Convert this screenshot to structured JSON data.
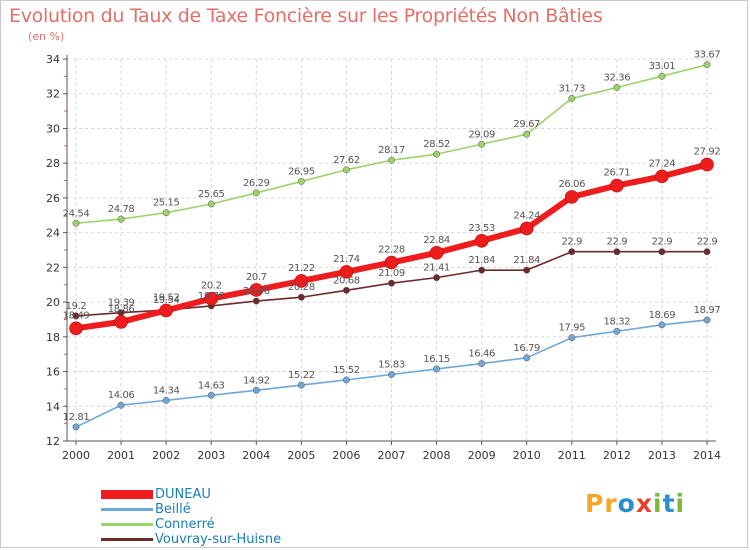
{
  "title": "Evolution du Taux de Taxe Foncière sur les Propriétés Non Bâties",
  "subtitle": "(en %)",
  "logo": {
    "letters": [
      "P",
      "r",
      "o",
      "x",
      "i",
      "t",
      "i"
    ],
    "colors": [
      "#f4a62a",
      "#f4a62a",
      "#2a8fd1",
      "#e8402c",
      "#7cb93a",
      "#2a8fd1",
      "#7cb93a"
    ]
  },
  "chart_data": {
    "type": "line",
    "title": "Evolution du Taux de Taxe Foncière sur les Propriétés Non Bâties",
    "ylabel": "(en %)",
    "x": [
      "2000",
      "2001",
      "2002",
      "2003",
      "2004",
      "2005",
      "2006",
      "2007",
      "2008",
      "2009",
      "2010",
      "2011",
      "2012",
      "2013",
      "2014"
    ],
    "ylim": [
      12,
      34
    ],
    "yticks": [
      "12",
      "14",
      "16",
      "18",
      "20",
      "22",
      "24",
      "26",
      "28",
      "30",
      "32",
      "34"
    ],
    "grid": true,
    "legend_position": "bottom-left",
    "series": [
      {
        "name": "Vouvray-sur-Huisne",
        "color": "#6e2a2a",
        "style": "thin",
        "values": [
          19.2,
          19.39,
          19.54,
          19.78,
          20.06,
          20.28,
          20.68,
          21.09,
          21.41,
          21.84,
          21.84,
          22.9,
          22.9,
          22.9,
          22.9
        ],
        "labels": [
          "19.2",
          "19.39",
          "19.54",
          "19.78",
          "20.06",
          "20.28",
          "20.68",
          "21.09",
          "21.41",
          "21.84",
          "21.84",
          "22.9",
          "22.9",
          "22.9",
          "22.9"
        ]
      },
      {
        "name": "Beillé",
        "color": "#6fa8d6",
        "style": "thin",
        "values": [
          12.81,
          14.06,
          14.34,
          14.63,
          14.92,
          15.22,
          15.52,
          15.83,
          16.15,
          16.46,
          16.79,
          17.95,
          18.32,
          18.69,
          18.97
        ],
        "labels": [
          "12.81",
          "14.06",
          "14.34",
          "14.63",
          "14.92",
          "15.22",
          "15.52",
          "15.83",
          "16.15",
          "16.46",
          "16.79",
          "17.95",
          "18.32",
          "18.69",
          "18.97"
        ]
      },
      {
        "name": "Connerré",
        "color": "#9ad36a",
        "style": "thin",
        "values": [
          24.54,
          24.78,
          25.15,
          25.65,
          26.29,
          26.95,
          27.62,
          28.17,
          28.52,
          29.09,
          29.67,
          31.73,
          32.36,
          33.01,
          33.67
        ],
        "labels": [
          "24.54",
          "24.78",
          "25.15",
          "25.65",
          "26.29",
          "26.95",
          "27.62",
          "28.17",
          "28.52",
          "29.09",
          "29.67",
          "31.73",
          "32.36",
          "33.01",
          "33.67"
        ]
      },
      {
        "name": "DUNEAU",
        "color": "#ee1c1c",
        "style": "thick",
        "values": [
          18.49,
          18.86,
          19.52,
          20.2,
          20.7,
          21.22,
          21.74,
          22.28,
          22.84,
          23.53,
          24.24,
          26.06,
          26.71,
          27.24,
          27.92
        ],
        "labels": [
          "18.49",
          "18.86",
          "19.52",
          "20.2",
          "20.7",
          "21.22",
          "21.74",
          "22.28",
          "22.84",
          "23.53",
          "24.24",
          "26.06",
          "26.71",
          "27.24",
          "27.92"
        ]
      }
    ],
    "legend_order": [
      "DUNEAU",
      "Beillé",
      "Connerré",
      "Vouvray-sur-Huisne"
    ]
  }
}
